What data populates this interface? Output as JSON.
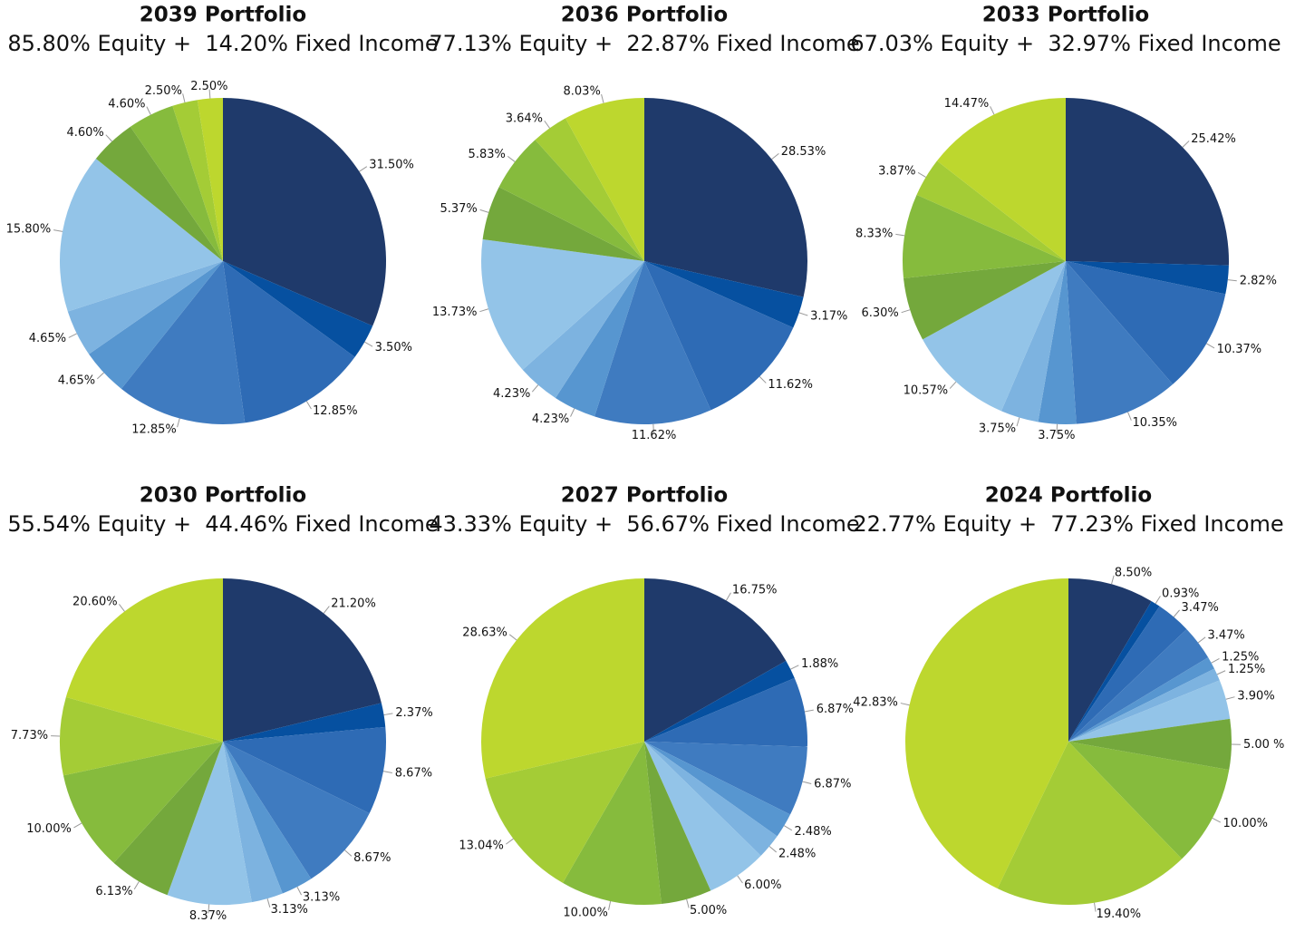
{
  "chart_data": [
    {
      "type": "pie",
      "title": "2039 Portfolio",
      "subtitle": "85.80% Equity +  14.20% Fixed Income",
      "values": [
        31.5,
        3.5,
        12.85,
        12.85,
        4.65,
        4.65,
        15.8,
        4.6,
        4.6,
        2.5,
        2.5
      ],
      "value_labels": [
        "31.50%",
        "3.50%",
        "12.85%",
        "12.85%",
        "4.65%",
        "4.65%",
        "15.80%",
        "4.60%",
        "4.60%",
        "2.50%",
        "2.50%"
      ],
      "colors": [
        "#1f3a6b",
        "#0650a0",
        "#2e6bb5",
        "#3f7bc0",
        "#5796d0",
        "#7db3e0",
        "#93c4e8",
        "#74a83c",
        "#86bb3d",
        "#a4cc36",
        "#bdd72e"
      ]
    },
    {
      "type": "pie",
      "title": "2036 Portfolio",
      "subtitle": "77.13% Equity +  22.87% Fixed Income",
      "values": [
        28.53,
        3.17,
        11.62,
        11.62,
        4.23,
        4.23,
        13.73,
        5.37,
        5.83,
        3.64,
        8.03
      ],
      "value_labels": [
        "28.53%",
        "3.17%",
        "11.62%",
        "11.62%",
        "4.23%",
        "4.23%",
        "13.73%",
        "5.37%",
        "5.83%",
        "3.64%",
        "8.03%"
      ],
      "colors": [
        "#1f3a6b",
        "#0650a0",
        "#2e6bb5",
        "#3f7bc0",
        "#5796d0",
        "#7db3e0",
        "#93c4e8",
        "#74a83c",
        "#86bb3d",
        "#a4cc36",
        "#bdd72e"
      ]
    },
    {
      "type": "pie",
      "title": "2033 Portfolio",
      "subtitle": "67.03% Equity +  32.97% Fixed Income",
      "values": [
        25.42,
        2.82,
        10.37,
        10.35,
        3.75,
        3.75,
        10.57,
        6.3,
        8.33,
        3.87,
        14.47
      ],
      "value_labels": [
        "25.42%",
        "2.82%",
        "10.37%",
        "10.35%",
        "3.75%",
        "3.75%",
        "10.57%",
        "6.30%",
        "8.33%",
        "3.87%",
        "14.47%"
      ],
      "colors": [
        "#1f3a6b",
        "#0650a0",
        "#2e6bb5",
        "#3f7bc0",
        "#5796d0",
        "#7db3e0",
        "#93c4e8",
        "#74a83c",
        "#86bb3d",
        "#a4cc36",
        "#bdd72e"
      ]
    },
    {
      "type": "pie",
      "title": "2030 Portfolio",
      "subtitle": "55.54% Equity +  44.46% Fixed Income",
      "values": [
        21.2,
        2.37,
        8.67,
        8.67,
        3.13,
        3.13,
        8.37,
        6.13,
        10.0,
        7.73,
        20.6
      ],
      "value_labels": [
        "21.20%",
        "2.37%",
        "8.67%",
        "8.67%",
        "3.13%",
        "3.13%",
        "8.37%",
        "6.13%",
        "10.00%",
        "7.73%",
        "20.60%"
      ],
      "colors": [
        "#1f3a6b",
        "#0650a0",
        "#2e6bb5",
        "#3f7bc0",
        "#5796d0",
        "#7db3e0",
        "#93c4e8",
        "#74a83c",
        "#86bb3d",
        "#a4cc36",
        "#bdd72e"
      ]
    },
    {
      "type": "pie",
      "title": "2027 Portfolio",
      "subtitle": "43.33% Equity +  56.67% Fixed Income",
      "values": [
        16.75,
        1.88,
        6.87,
        6.87,
        2.48,
        2.48,
        6.0,
        5.0,
        10.0,
        13.04,
        28.63
      ],
      "value_labels": [
        "16.75%",
        "1.88%",
        "6.87%",
        "6.87%",
        "2.48%",
        "2.48%",
        "6.00%",
        "5.00%",
        "10.00%",
        "13.04%",
        "28.63%"
      ],
      "colors": [
        "#1f3a6b",
        "#0650a0",
        "#2e6bb5",
        "#3f7bc0",
        "#5796d0",
        "#7db3e0",
        "#93c4e8",
        "#74a83c",
        "#86bb3d",
        "#a4cc36",
        "#bdd72e"
      ]
    },
    {
      "type": "pie",
      "title": "2024 Portfolio",
      "subtitle": "22.77% Equity +  77.23% Fixed Income",
      "values": [
        8.5,
        0.93,
        3.47,
        3.47,
        1.25,
        1.25,
        3.9,
        5.0,
        10.0,
        19.4,
        42.83
      ],
      "value_labels": [
        "8.50%",
        "0.93%",
        "3.47%",
        "3.47%",
        "1.25%",
        "1.25%",
        "3.90%",
        "5.00 %",
        "10.00%",
        "19.40%",
        "42.83%"
      ],
      "colors": [
        "#1f3a6b",
        "#0650a0",
        "#2e6bb5",
        "#3f7bc0",
        "#5796d0",
        "#7db3e0",
        "#93c4e8",
        "#74a83c",
        "#86bb3d",
        "#a4cc36",
        "#bdd72e"
      ]
    }
  ]
}
